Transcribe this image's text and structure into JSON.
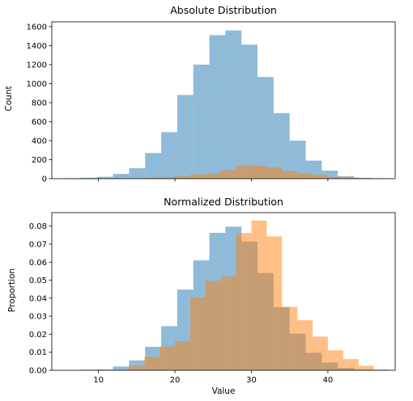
{
  "chart_data": [
    {
      "type": "bar",
      "title": "Absolute Distribution",
      "xlabel": "",
      "ylabel": "Count",
      "xlim": [
        3.9,
        48.8
      ],
      "ylim": [
        0,
        1650
      ],
      "yticks": [
        0,
        200,
        400,
        600,
        800,
        1000,
        1200,
        1400,
        1600
      ],
      "xticks": [
        10,
        20,
        30,
        40
      ],
      "show_xtick_labels": false,
      "grid": false,
      "legend": "none",
      "series": [
        {
          "color": "#1f77b4",
          "opacity": 0.5,
          "bins": [
            [
              5.6,
              7.7,
              5
            ],
            [
              7.7,
              9.8,
              10
            ],
            [
              9.8,
              11.9,
              20
            ],
            [
              11.9,
              14.0,
              50
            ],
            [
              14.0,
              16.1,
              110
            ],
            [
              16.1,
              18.2,
              270
            ],
            [
              18.2,
              20.3,
              490
            ],
            [
              20.3,
              22.4,
              880
            ],
            [
              22.4,
              24.5,
              1200
            ],
            [
              24.5,
              26.6,
              1510
            ],
            [
              26.6,
              28.7,
              1560
            ],
            [
              28.7,
              30.8,
              1410
            ],
            [
              30.8,
              32.9,
              1070
            ],
            [
              32.9,
              35.0,
              690
            ],
            [
              35.0,
              37.1,
              400
            ],
            [
              37.1,
              39.2,
              190
            ],
            [
              39.2,
              41.3,
              85
            ],
            [
              41.3,
              43.4,
              25
            ],
            [
              43.4,
              45.5,
              8
            ],
            [
              45.5,
              47.6,
              3
            ]
          ]
        },
        {
          "color": "#ff7f0e",
          "opacity": 0.5,
          "bins": [
            [
              14.0,
              16.0,
              3
            ],
            [
              16.0,
              18.0,
              10
            ],
            [
              18.0,
              20.0,
              15
            ],
            [
              20.0,
              22.0,
              25
            ],
            [
              22.0,
              24.0,
              45
            ],
            [
              24.0,
              26.0,
              55
            ],
            [
              26.0,
              28.0,
              90
            ],
            [
              28.0,
              30.0,
              140
            ],
            [
              30.0,
              32.0,
              135
            ],
            [
              32.0,
              34.0,
              120
            ],
            [
              34.0,
              36.0,
              80
            ],
            [
              36.0,
              38.0,
              55
            ],
            [
              38.0,
              40.0,
              40
            ],
            [
              40.0,
              42.0,
              20
            ],
            [
              42.0,
              44.0,
              15
            ],
            [
              44.0,
              46.0,
              8
            ],
            [
              46.0,
              48.0,
              5
            ]
          ]
        }
      ]
    },
    {
      "type": "bar",
      "title": "Normalized Distribution",
      "xlabel": "Value",
      "ylabel": "Proportion",
      "xlim": [
        3.9,
        48.8
      ],
      "ylim": [
        0,
        0.0875
      ],
      "yticks": [
        0.0,
        0.01,
        0.02,
        0.03,
        0.04,
        0.05,
        0.06,
        0.07,
        0.08
      ],
      "ytick_labels": [
        "0.00",
        "0.01",
        "0.02",
        "0.03",
        "0.04",
        "0.05",
        "0.06",
        "0.07",
        "0.08"
      ],
      "xticks": [
        10,
        20,
        30,
        40
      ],
      "show_xtick_labels": true,
      "grid": false,
      "legend": "none",
      "series": [
        {
          "color": "#1f77b4",
          "opacity": 0.5,
          "bins": [
            [
              5.6,
              7.7,
              0.0002
            ],
            [
              7.7,
              9.8,
              0.0003
            ],
            [
              9.8,
              11.9,
              0.0005
            ],
            [
              11.9,
              14.0,
              0.0021
            ],
            [
              14.0,
              16.1,
              0.0055
            ],
            [
              16.1,
              18.2,
              0.013
            ],
            [
              18.2,
              20.3,
              0.0245
            ],
            [
              20.3,
              22.4,
              0.0448
            ],
            [
              22.4,
              24.5,
              0.061
            ],
            [
              24.5,
              26.6,
              0.0763
            ],
            [
              26.6,
              28.7,
              0.0797
            ],
            [
              28.7,
              30.8,
              0.0714
            ],
            [
              30.8,
              32.9,
              0.054
            ],
            [
              32.9,
              35.0,
              0.035
            ],
            [
              35.0,
              37.1,
              0.0203
            ],
            [
              37.1,
              39.2,
              0.0097
            ],
            [
              39.2,
              41.3,
              0.0043
            ],
            [
              41.3,
              43.4,
              0.0013
            ],
            [
              43.4,
              45.5,
              0.0004
            ],
            [
              45.5,
              47.6,
              0.0002
            ]
          ]
        },
        {
          "color": "#ff7f0e",
          "opacity": 0.5,
          "bins": [
            [
              14.0,
              16.0,
              0.0025
            ],
            [
              16.0,
              18.0,
              0.0075
            ],
            [
              18.0,
              20.0,
              0.0132
            ],
            [
              20.0,
              22.0,
              0.0162
            ],
            [
              22.0,
              24.0,
              0.0405
            ],
            [
              24.0,
              26.0,
              0.0497
            ],
            [
              26.0,
              28.0,
              0.0521
            ],
            [
              28.0,
              30.0,
              0.0762
            ],
            [
              30.0,
              32.0,
              0.0831
            ],
            [
              32.0,
              34.0,
              0.0743
            ],
            [
              34.0,
              36.0,
              0.0352
            ],
            [
              36.0,
              38.0,
              0.0278
            ],
            [
              38.0,
              40.0,
              0.0187
            ],
            [
              40.0,
              42.0,
              0.0111
            ],
            [
              42.0,
              44.0,
              0.0062
            ],
            [
              44.0,
              46.0,
              0.0025
            ],
            [
              46.0,
              48.0,
              0.0005
            ]
          ]
        }
      ]
    }
  ]
}
